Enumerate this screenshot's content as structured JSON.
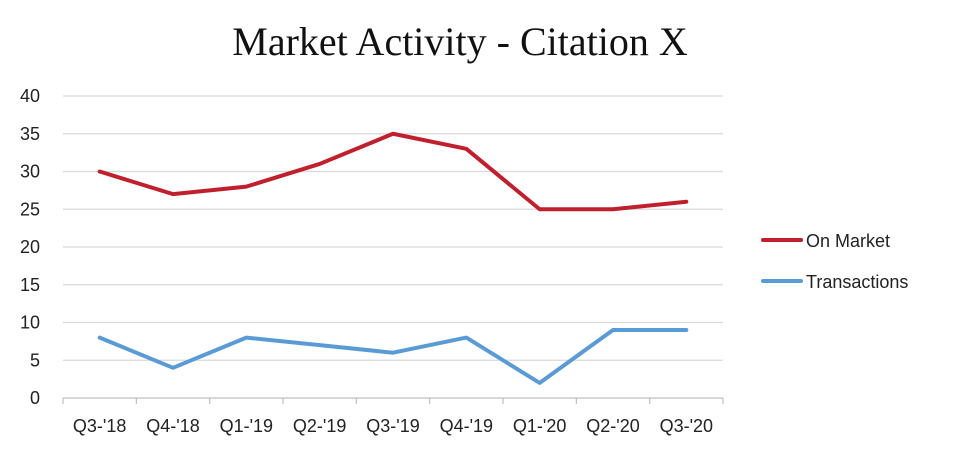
{
  "chart_data": {
    "type": "line",
    "title": "Market Activity - Citation X",
    "xlabel": "",
    "ylabel": "",
    "categories": [
      "Q3-'18",
      "Q4-'18",
      "Q1-'19",
      "Q2-'19",
      "Q3-'19",
      "Q4-'19",
      "Q1-'20",
      "Q2-'20",
      "Q3-'20"
    ],
    "ylim": [
      0,
      40
    ],
    "yticks": [
      0,
      5,
      10,
      15,
      20,
      25,
      30,
      35,
      40
    ],
    "grid": true,
    "legend_position": "right",
    "series": [
      {
        "name": "On Market",
        "color": "#C0202E",
        "values": [
          30,
          27,
          28,
          31,
          35,
          33,
          25,
          25,
          26
        ]
      },
      {
        "name": "Transactions",
        "color": "#5B9BD5",
        "values": [
          8,
          4,
          8,
          7,
          6,
          8,
          2,
          9,
          9
        ]
      }
    ]
  }
}
